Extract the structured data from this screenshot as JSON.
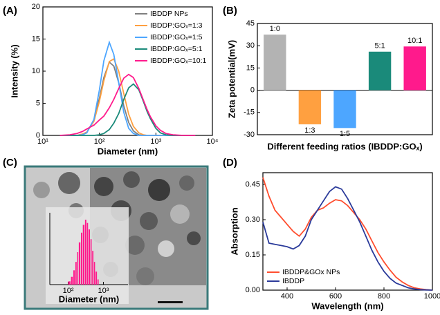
{
  "chart_data": [
    {
      "type": "line",
      "panel": "(A)",
      "xlabel": "Diameter (nm)",
      "ylabel": "Intensity (%)",
      "xscale": "log",
      "xlim": [
        10,
        10000
      ],
      "xticks": [
        {
          "value": 10,
          "label": "10¹"
        },
        {
          "value": 100,
          "label": "10²"
        },
        {
          "value": 1000,
          "label": "10³"
        },
        {
          "value": 10000,
          "label": "10⁴"
        }
      ],
      "ylim": [
        0,
        20
      ],
      "yticks": [
        0,
        5,
        10,
        15,
        20
      ],
      "legend": "top-right",
      "x": [
        20,
        30,
        40,
        50,
        60,
        80,
        100,
        120,
        150,
        180,
        220,
        270,
        330,
        400,
        500,
        600,
        700,
        800,
        1000,
        1200,
        1500,
        2000,
        3000,
        5000
      ],
      "series": [
        {
          "name": "IBDDP NPs",
          "color": "#7f7f7f",
          "values": [
            0,
            0,
            0,
            0.2,
            0.5,
            2.4,
            5.8,
            9.0,
            11.4,
            10.8,
            8.2,
            4.6,
            2.0,
            0.7,
            0.1,
            0,
            0,
            0,
            0,
            0,
            0,
            0,
            0,
            0
          ]
        },
        {
          "name": "IBDDP:GOₓ=1:3",
          "color": "#ffa040",
          "values": [
            0,
            0,
            0,
            0.2,
            0.5,
            2.2,
            5.3,
            8.5,
            11.5,
            11.9,
            10.0,
            6.5,
            3.3,
            1.4,
            0.4,
            0.1,
            0,
            0,
            0,
            0,
            0,
            0,
            0,
            0
          ]
        },
        {
          "name": "IBDDP:GOₓ=1:5",
          "color": "#4da6ff",
          "values": [
            0,
            0,
            0,
            0.1,
            0.4,
            2.5,
            7.1,
            11.6,
            14.5,
            12.6,
            8.2,
            3.6,
            1.1,
            0.3,
            0,
            0,
            0,
            0,
            0,
            0,
            0,
            0,
            0,
            0
          ]
        },
        {
          "name": "IBDDP:GOₓ=5:1",
          "color": "#1a8a7a",
          "values": [
            0,
            0,
            0,
            0,
            0,
            0,
            0.1,
            0.3,
            0.9,
            1.9,
            3.4,
            5.6,
            7.4,
            8.0,
            7.1,
            5.3,
            3.7,
            2.6,
            1.1,
            0.4,
            0.1,
            0,
            0,
            0
          ]
        },
        {
          "name": "IBDDP:GOₓ=10:1",
          "color": "#ff1a8c",
          "values": [
            0,
            0.1,
            0.3,
            0.6,
            1.0,
            1.6,
            2.4,
            3.0,
            4.3,
            5.6,
            7.3,
            8.9,
            9.5,
            9.0,
            7.3,
            5.5,
            4.0,
            2.9,
            1.5,
            0.8,
            0.3,
            0.1,
            0,
            0
          ]
        }
      ]
    },
    {
      "type": "bar",
      "panel": "(B)",
      "xlabel": "Different feeding ratios (IBDDP:GOₓ)",
      "ylabel": "Zeta potential(mV)",
      "categories": [
        "1:0",
        "1:3",
        "1:5",
        "5:1",
        "10:1"
      ],
      "values": [
        37.5,
        -23,
        -25.5,
        26,
        29.5
      ],
      "colors": [
        "#b3b3b3",
        "#ffa040",
        "#4da6ff",
        "#1a8a7a",
        "#ff1a8c"
      ],
      "ylim": [
        -30,
        45
      ],
      "yticks": [
        -30,
        -15,
        0,
        15,
        30,
        45
      ]
    },
    {
      "type": "histogram",
      "panel": "(C)",
      "xlabel": "Diameter (nm)",
      "xscale": "log",
      "color": "#ff1a8c",
      "xlim": [
        30,
        5000
      ],
      "xticks": [
        {
          "value": 100,
          "label": "10²"
        },
        {
          "value": 1000,
          "label": "10³"
        }
      ],
      "bins": [
        100,
        120,
        140,
        160,
        180,
        200,
        230,
        260,
        300,
        340,
        380,
        430,
        480,
        540,
        600,
        680,
        760
      ],
      "values": [
        5,
        12,
        22,
        35,
        50,
        65,
        80,
        92,
        100,
        95,
        85,
        70,
        52,
        35,
        20,
        8
      ]
    },
    {
      "type": "line",
      "panel": "(D)",
      "xlabel": "Wavelength (nm)",
      "ylabel": "Absorption",
      "xlim": [
        300,
        1000
      ],
      "xticks": [
        400,
        600,
        800,
        1000
      ],
      "ylim": [
        0,
        0.5
      ],
      "yticks": [
        {
          "value": 0,
          "label": "0.00"
        },
        0.15,
        {
          "value": 0.3,
          "label": "0.30"
        },
        0.45
      ],
      "legend": "bottom-left",
      "x": [
        300,
        325,
        350,
        375,
        400,
        425,
        450,
        475,
        500,
        525,
        550,
        575,
        600,
        625,
        650,
        675,
        700,
        725,
        750,
        775,
        800,
        825,
        850,
        875,
        900,
        925,
        950,
        975,
        1000
      ],
      "series": [
        {
          "name": "IBDDP&GOx NPs",
          "color": "#ff4d2e",
          "values": [
            0.48,
            0.4,
            0.34,
            0.31,
            0.28,
            0.25,
            0.23,
            0.26,
            0.31,
            0.34,
            0.35,
            0.37,
            0.385,
            0.38,
            0.36,
            0.33,
            0.3,
            0.26,
            0.21,
            0.16,
            0.12,
            0.085,
            0.055,
            0.035,
            0.02,
            0.01,
            0.005,
            0.002,
            0
          ]
        },
        {
          "name": "IBDDP",
          "color": "#2a3a9a",
          "values": [
            0.29,
            0.2,
            0.195,
            0.19,
            0.185,
            0.175,
            0.19,
            0.23,
            0.3,
            0.34,
            0.38,
            0.42,
            0.44,
            0.43,
            0.39,
            0.34,
            0.29,
            0.23,
            0.17,
            0.12,
            0.08,
            0.05,
            0.03,
            0.02,
            0.01,
            0.005,
            0.002,
            0.001,
            0
          ]
        }
      ]
    }
  ]
}
